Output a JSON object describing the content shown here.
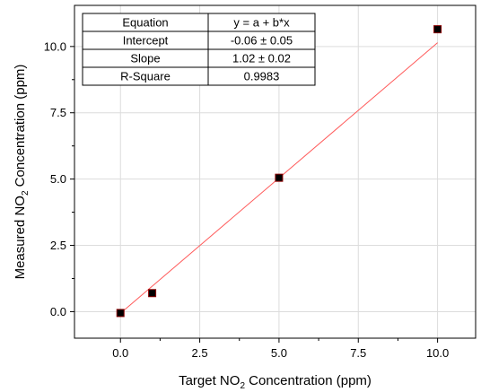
{
  "chart_data": {
    "type": "scatter",
    "xlabel": {
      "pre": "Target NO",
      "sub": "2",
      "post": " Concentration (ppm)"
    },
    "ylabel": {
      "pre": "Measured NO",
      "sub": "2",
      "post": " Concentration (ppm)"
    },
    "xlim": [
      -1.45,
      11.2
    ],
    "ylim": [
      -1.0,
      11.55
    ],
    "x_ticks": [
      "0.0",
      "2.5",
      "5.0",
      "7.5",
      "10.0"
    ],
    "x_tick_values": [
      0,
      2.5,
      5,
      7.5,
      10
    ],
    "y_ticks": [
      "0.0",
      "2.5",
      "5.0",
      "7.5",
      "10.0"
    ],
    "y_tick_values": [
      0,
      2.5,
      5,
      7.5,
      10
    ],
    "grid": true,
    "series": [
      {
        "points": [
          {
            "x": 0.0,
            "y": -0.05
          },
          {
            "x": 1.0,
            "y": 0.7
          },
          {
            "x": 5.0,
            "y": 5.05
          },
          {
            "x": 10.0,
            "y": 10.65
          }
        ],
        "marker_color": "#000000",
        "marker_edge": "#8b0000"
      }
    ],
    "fit_line": {
      "intercept": -0.06,
      "slope": 1.02,
      "x_range": [
        0,
        10
      ],
      "color": "#ff5a5a"
    },
    "stats_table": {
      "placement": "top-left",
      "rows": [
        [
          "Equation",
          "y = a + b*x"
        ],
        [
          "Intercept",
          "-0.06 ± 0.05"
        ],
        [
          "Slope",
          "1.02 ± 0.02"
        ],
        [
          "R-Square",
          "0.9983"
        ]
      ]
    }
  }
}
